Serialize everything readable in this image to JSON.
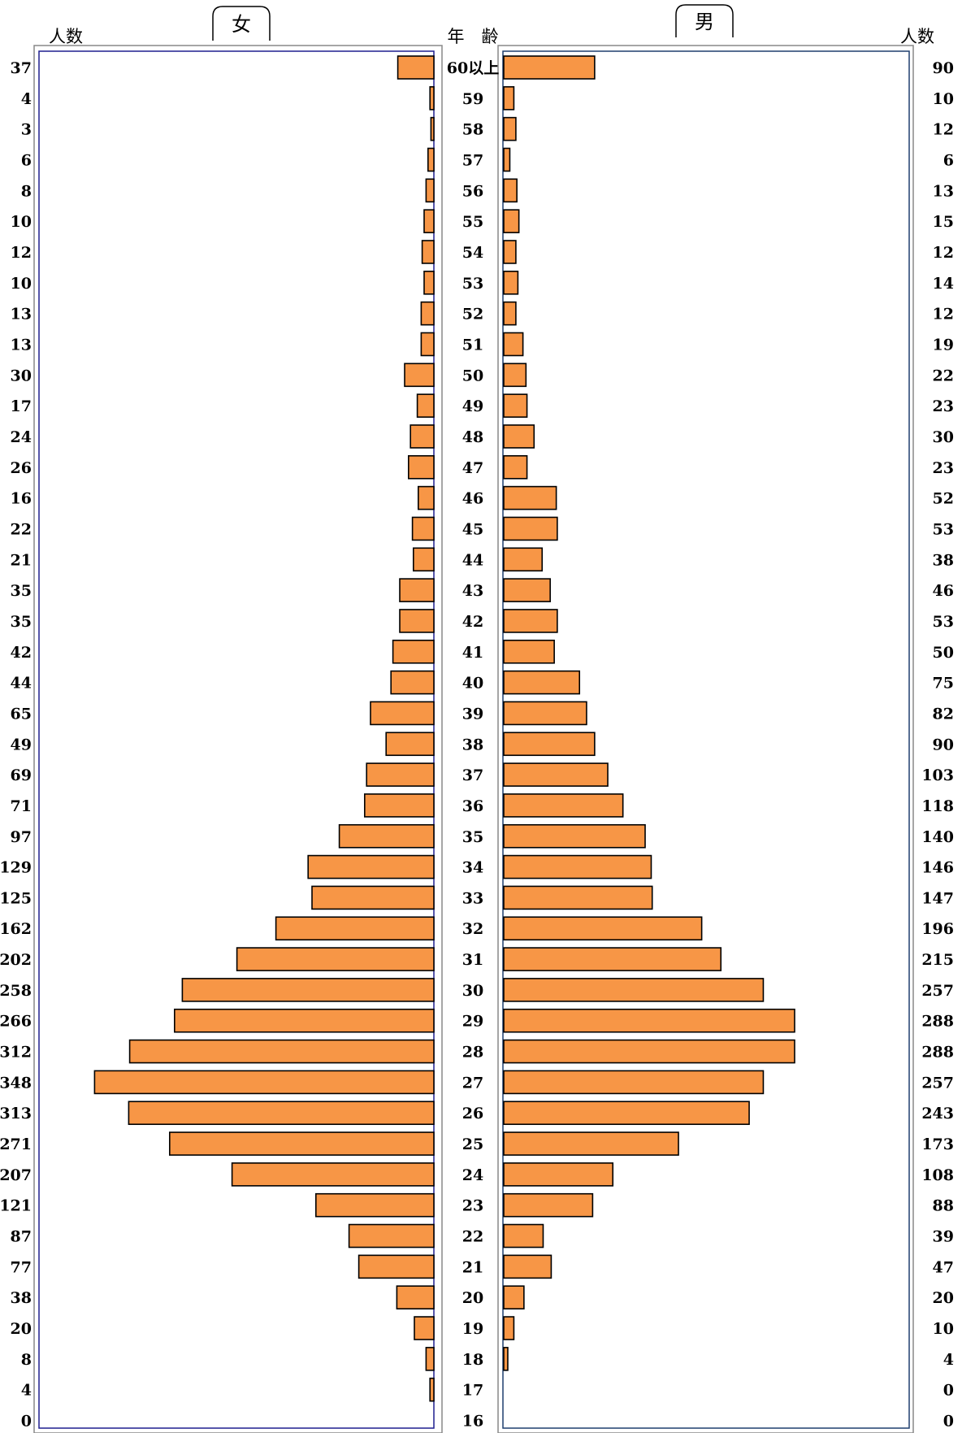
{
  "chart_data": {
    "type": "bar",
    "female_label": "女",
    "male_label": "男",
    "age_header": "年　齢",
    "count_header_left": "人数",
    "count_header_right": "人数",
    "categories": [
      "60以上",
      "59",
      "58",
      "57",
      "56",
      "55",
      "54",
      "53",
      "52",
      "51",
      "50",
      "49",
      "48",
      "47",
      "46",
      "45",
      "44",
      "43",
      "42",
      "41",
      "40",
      "39",
      "38",
      "37",
      "36",
      "35",
      "34",
      "33",
      "32",
      "31",
      "30",
      "29",
      "28",
      "27",
      "26",
      "25",
      "24",
      "23",
      "22",
      "21",
      "20",
      "19",
      "18",
      "17",
      "16"
    ],
    "female": [
      37,
      4,
      3,
      6,
      8,
      10,
      12,
      10,
      13,
      13,
      30,
      17,
      24,
      26,
      16,
      22,
      21,
      35,
      35,
      42,
      44,
      65,
      49,
      69,
      71,
      97,
      129,
      125,
      162,
      202,
      258,
      266,
      312,
      348,
      313,
      271,
      207,
      121,
      87,
      77,
      38,
      20,
      8,
      4,
      0
    ],
    "male": [
      90,
      10,
      12,
      6,
      13,
      15,
      12,
      14,
      12,
      19,
      22,
      23,
      30,
      23,
      52,
      53,
      38,
      46,
      53,
      50,
      75,
      82,
      90,
      103,
      118,
      140,
      146,
      147,
      196,
      215,
      257,
      288,
      288,
      257,
      243,
      173,
      108,
      88,
      39,
      47,
      20,
      10,
      4,
      0,
      0
    ],
    "colors": {
      "bar": "#f79646",
      "left_frame": "#1f1f8f",
      "right_frame": "#1f3f6f"
    }
  }
}
